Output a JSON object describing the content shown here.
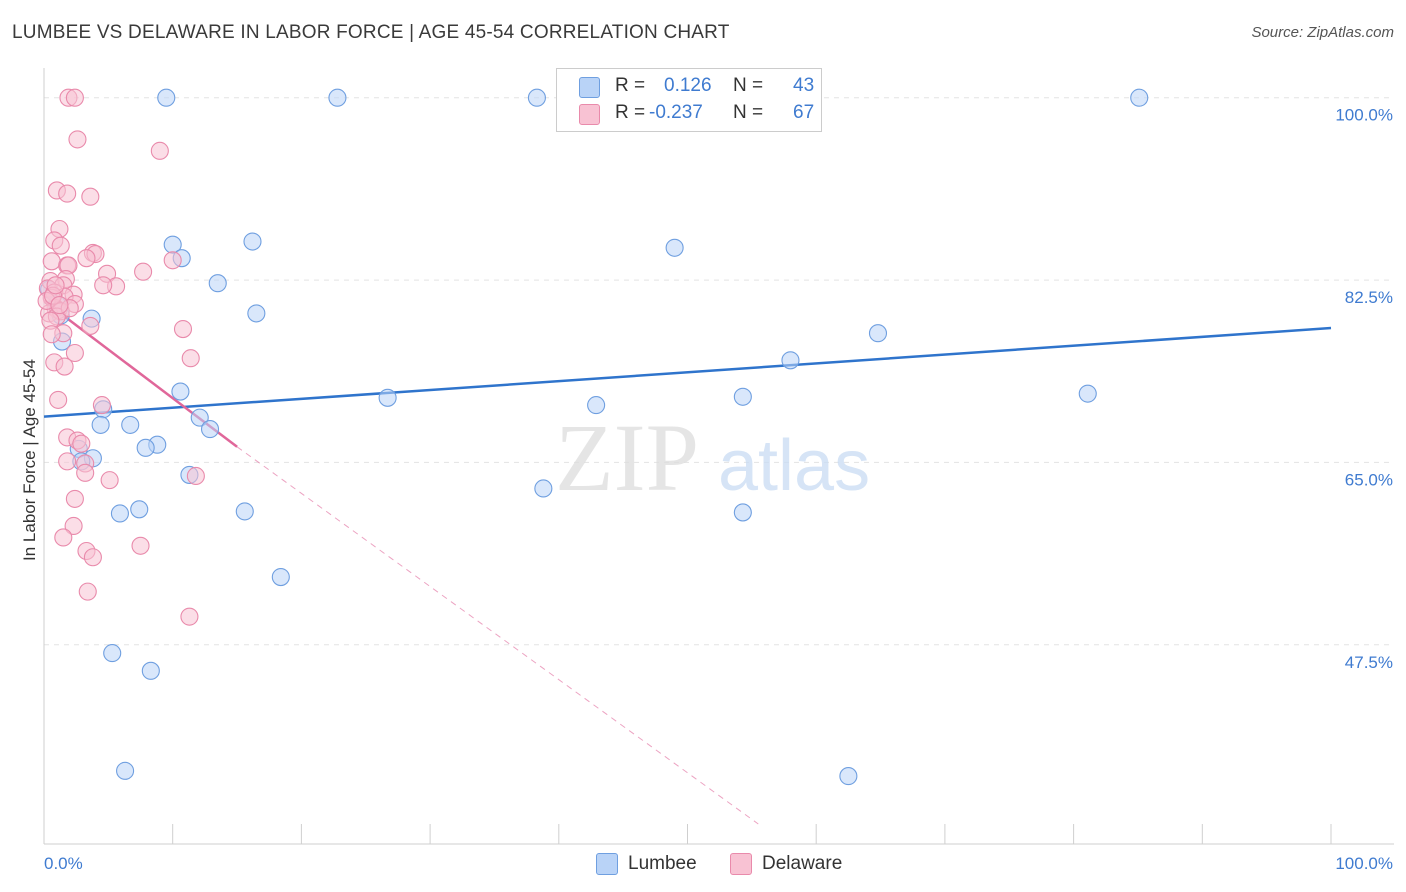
{
  "title": "LUMBEE VS DELAWARE IN LABOR FORCE | AGE 45-54 CORRELATION CHART",
  "source": "Source: ZipAtlas.com",
  "watermark": {
    "zip": "ZIP",
    "atlas": "atlas"
  },
  "colors": {
    "lumbee_fill": "#b9d3f7",
    "lumbee_stroke": "#6f9fe0",
    "lumbee_line": "#2f74cc",
    "delaware_fill": "#f8c2d3",
    "delaware_stroke": "#e98aab",
    "delaware_line": "#e0679a",
    "axis_label": "#3f7bd0",
    "grid": "#e3e3e3"
  },
  "stats": {
    "lumbee": {
      "r_label": "R =",
      "r_value": "0.126",
      "n_label": "N =",
      "n_value": "43"
    },
    "delaware": {
      "r_label": "R =",
      "r_value": "-0.237",
      "n_label": "N =",
      "n_value": "67"
    }
  },
  "legend": {
    "lumbee": "Lumbee",
    "delaware": "Delaware"
  },
  "chart_data": {
    "type": "scatter",
    "title": "LUMBEE VS DELAWARE IN LABOR FORCE | AGE 45-54 CORRELATION CHART",
    "xlabel": "",
    "ylabel": "In Labor Force | Age 45-54",
    "xlim": [
      0,
      100
    ],
    "ylim": [
      30.3,
      101.7
    ],
    "x_tick_labels": [
      "0.0%",
      "100.0%"
    ],
    "y_ticks": [
      47.5,
      65.0,
      82.5,
      100.0
    ],
    "y_tick_labels": [
      "47.5%",
      "65.0%",
      "82.5%",
      "100.0%"
    ],
    "grid": true,
    "legend_position": "bottom-center",
    "series": [
      {
        "name": "Lumbee",
        "points": [
          [
            9.5,
            100.0
          ],
          [
            22.8,
            100.0
          ],
          [
            38.3,
            100.0
          ],
          [
            85.1,
            100.0
          ],
          [
            16.2,
            86.2
          ],
          [
            10.0,
            85.9
          ],
          [
            10.7,
            84.6
          ],
          [
            49.0,
            85.6
          ],
          [
            13.5,
            82.2
          ],
          [
            16.5,
            79.3
          ],
          [
            64.8,
            77.4
          ],
          [
            3.7,
            78.8
          ],
          [
            1.3,
            79.1
          ],
          [
            1.4,
            76.6
          ],
          [
            58.0,
            74.8
          ],
          [
            10.6,
            71.8
          ],
          [
            26.7,
            71.2
          ],
          [
            54.3,
            71.3
          ],
          [
            81.1,
            71.6
          ],
          [
            42.9,
            70.5
          ],
          [
            4.6,
            70.1
          ],
          [
            12.1,
            69.3
          ],
          [
            6.7,
            68.6
          ],
          [
            12.9,
            68.2
          ],
          [
            4.4,
            68.6
          ],
          [
            8.8,
            66.7
          ],
          [
            7.9,
            66.4
          ],
          [
            2.7,
            66.3
          ],
          [
            3.8,
            65.4
          ],
          [
            2.9,
            65.1
          ],
          [
            11.3,
            63.8
          ],
          [
            38.8,
            62.5
          ],
          [
            7.4,
            60.5
          ],
          [
            5.9,
            60.1
          ],
          [
            15.6,
            60.3
          ],
          [
            54.3,
            60.2
          ],
          [
            18.4,
            54.0
          ],
          [
            5.3,
            46.7
          ],
          [
            8.3,
            45.0
          ],
          [
            6.3,
            35.4
          ],
          [
            62.5,
            34.9
          ],
          [
            0.4,
            81.6
          ],
          [
            1.0,
            80.2
          ]
        ],
        "trend": {
          "x": [
            0,
            100
          ],
          "y": [
            69.4,
            77.9
          ]
        }
      },
      {
        "name": "Delaware",
        "points": [
          [
            1.9,
            100.0
          ],
          [
            2.4,
            100.0
          ],
          [
            2.6,
            96.0
          ],
          [
            9.0,
            94.9
          ],
          [
            1.0,
            91.1
          ],
          [
            1.8,
            90.8
          ],
          [
            3.6,
            90.5
          ],
          [
            1.2,
            87.4
          ],
          [
            0.8,
            86.3
          ],
          [
            1.3,
            85.8
          ],
          [
            3.8,
            85.1
          ],
          [
            4.0,
            85.0
          ],
          [
            3.3,
            84.6
          ],
          [
            0.6,
            84.3
          ],
          [
            10.0,
            84.4
          ],
          [
            1.8,
            83.9
          ],
          [
            1.9,
            83.9
          ],
          [
            7.7,
            83.3
          ],
          [
            4.9,
            83.1
          ],
          [
            1.7,
            82.6
          ],
          [
            0.5,
            82.4
          ],
          [
            1.5,
            82.0
          ],
          [
            5.6,
            81.9
          ],
          [
            4.6,
            82.0
          ],
          [
            0.3,
            81.7
          ],
          [
            0.8,
            81.3
          ],
          [
            2.3,
            81.1
          ],
          [
            1.6,
            80.9
          ],
          [
            0.6,
            80.8
          ],
          [
            2.4,
            80.2
          ],
          [
            0.9,
            79.8
          ],
          [
            1.1,
            79.6
          ],
          [
            0.4,
            79.3
          ],
          [
            1.3,
            79.5
          ],
          [
            1.0,
            79.0
          ],
          [
            0.5,
            78.6
          ],
          [
            3.6,
            78.1
          ],
          [
            10.8,
            77.8
          ],
          [
            1.5,
            77.4
          ],
          [
            0.6,
            77.3
          ],
          [
            2.4,
            75.5
          ],
          [
            11.4,
            75.0
          ],
          [
            0.8,
            74.6
          ],
          [
            1.6,
            74.2
          ],
          [
            1.1,
            71.0
          ],
          [
            4.5,
            70.5
          ],
          [
            1.8,
            67.4
          ],
          [
            2.6,
            67.1
          ],
          [
            2.9,
            66.8
          ],
          [
            1.8,
            65.1
          ],
          [
            3.2,
            64.9
          ],
          [
            3.2,
            64.0
          ],
          [
            11.8,
            63.7
          ],
          [
            5.1,
            63.3
          ],
          [
            2.4,
            61.5
          ],
          [
            2.3,
            58.9
          ],
          [
            1.5,
            57.8
          ],
          [
            7.5,
            57.0
          ],
          [
            3.3,
            56.5
          ],
          [
            3.8,
            55.9
          ],
          [
            3.4,
            52.6
          ],
          [
            11.3,
            50.2
          ],
          [
            0.2,
            80.5
          ],
          [
            2.0,
            79.8
          ],
          [
            0.7,
            81.0
          ],
          [
            1.2,
            80.1
          ],
          [
            0.9,
            82.0
          ]
        ],
        "trend_solid": {
          "x": [
            0,
            15
          ],
          "y": [
            80.5,
            66.5
          ]
        },
        "trend_dashed": {
          "x": [
            15,
            55.5
          ],
          "y": [
            66.5,
            30.3
          ]
        }
      }
    ]
  }
}
